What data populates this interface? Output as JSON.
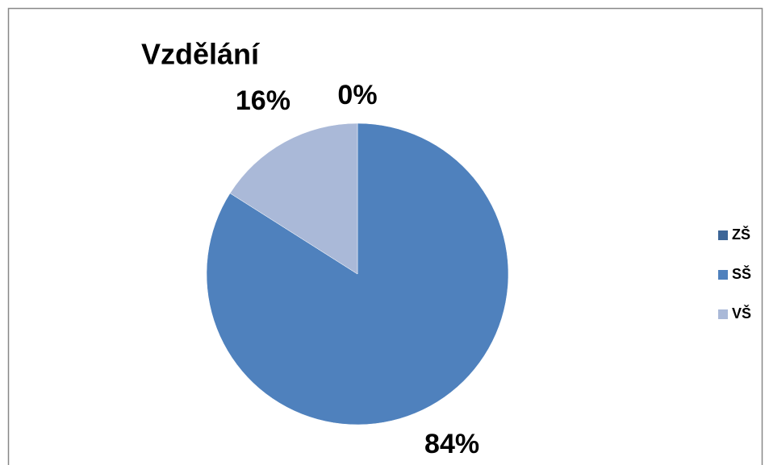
{
  "chart_data": {
    "type": "pie",
    "title": "Vzdělání",
    "categories": [
      "ZŠ",
      "SŠ",
      "VŠ"
    ],
    "values": [
      0,
      84,
      16
    ],
    "value_labels": [
      "0%",
      "84%",
      "16%"
    ],
    "colors": [
      "#3c6597",
      "#4f81bd",
      "#aab9d8"
    ],
    "legend": "right"
  }
}
